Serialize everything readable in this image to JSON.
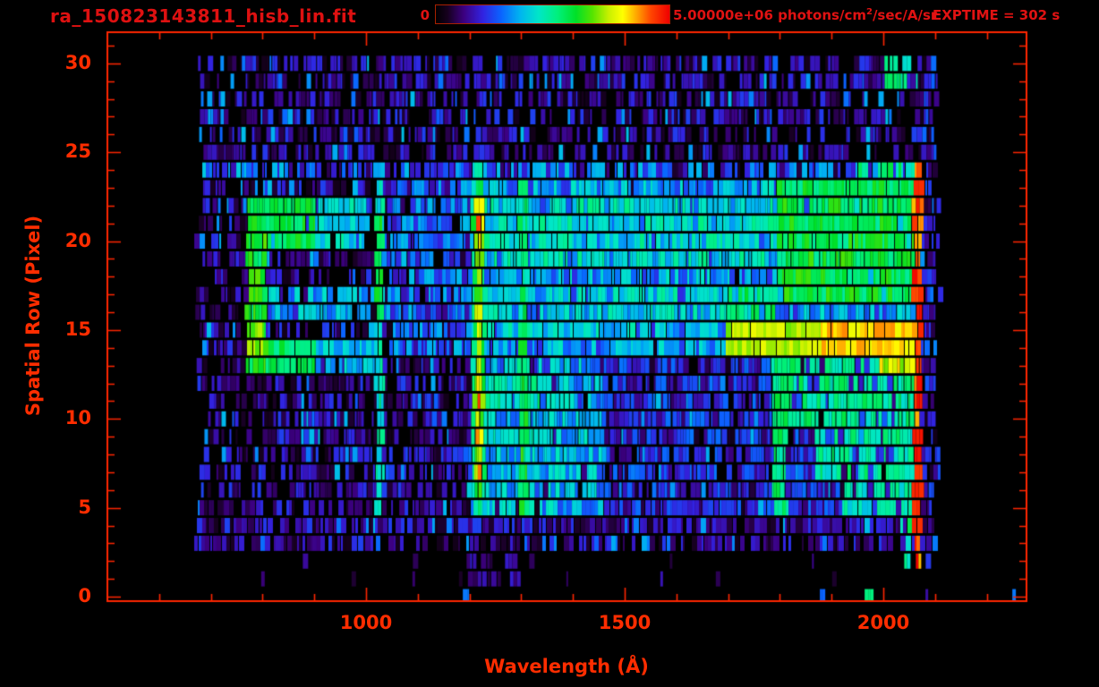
{
  "header": {
    "title": "ra_150823143811_hisb_lin.fit",
    "exptime": "EXPTIME = 302 s",
    "colorbar": {
      "min_label": "0",
      "max_label": "5.00000e+06",
      "units_prefix": " photons/cm",
      "units_sup": "2",
      "units_suffix": "/sec/A/sr",
      "stops": [
        [
          0.0,
          "#000000"
        ],
        [
          0.05,
          "#16001e"
        ],
        [
          0.12,
          "#3c0080"
        ],
        [
          0.2,
          "#3222e0"
        ],
        [
          0.28,
          "#0a64ff"
        ],
        [
          0.36,
          "#00b4f0"
        ],
        [
          0.44,
          "#00e6c8"
        ],
        [
          0.52,
          "#00f07d"
        ],
        [
          0.6,
          "#00e028"
        ],
        [
          0.67,
          "#55e400"
        ],
        [
          0.74,
          "#c8f000"
        ],
        [
          0.8,
          "#ffff00"
        ],
        [
          0.86,
          "#ffa500"
        ],
        [
          0.92,
          "#ff4600"
        ],
        [
          1.0,
          "#f00000"
        ]
      ]
    }
  },
  "axes": {
    "x": {
      "label": "Wavelength (Å)",
      "ticks": [
        1000,
        1500,
        2000
      ]
    },
    "y": {
      "label": "Spatial Row (Pixel)",
      "ticks": [
        0,
        5,
        10,
        15,
        20,
        25,
        30
      ]
    }
  },
  "colors": {
    "axis_red": "#ff2600",
    "label_red": "#ff2d00",
    "top_text_red": "#de1111",
    "background": "#000000"
  },
  "chart_data": {
    "type": "heatmap",
    "title": "ra_150823143811_hisb_lin.fit",
    "xlabel": "Wavelength (Å)",
    "ylabel": "Spatial Row (Pixel)",
    "x_ticks": [
      1000,
      1500,
      2000
    ],
    "y_ticks": [
      0,
      5,
      10,
      15,
      20,
      25,
      30
    ],
    "x_minor_step": 100,
    "y_minor_step": 1,
    "wl_axis_range": [
      500,
      2280
    ],
    "row_axis_range": [
      -0.25,
      31.75
    ],
    "data_wl_extent": [
      662,
      2105
    ],
    "colorbar_min": 0,
    "colorbar_max": "5.00000e+06 photons/cm2/sec/A/sr",
    "exposure": "302 s",
    "lya_line": {
      "wl": [
        1204,
        1233
      ],
      "center": 1218.5,
      "halfwidth": 14.5,
      "rows": [
        4.6,
        24.3
      ],
      "profile": [
        [
          4.6,
          0.5
        ],
        [
          5,
          0.55
        ],
        [
          6,
          0.64
        ],
        [
          7,
          0.85
        ],
        [
          8,
          0.74
        ],
        [
          9,
          0.86
        ],
        [
          10,
          0.77
        ],
        [
          11,
          0.9
        ],
        [
          12,
          0.78
        ],
        [
          13,
          0.7
        ],
        [
          14,
          0.68
        ],
        [
          15,
          0.75
        ],
        [
          16,
          0.8
        ],
        [
          17,
          0.73
        ],
        [
          18,
          0.68
        ],
        [
          19,
          0.75
        ],
        [
          20,
          0.82
        ],
        [
          21,
          0.93
        ],
        [
          22,
          0.9
        ],
        [
          23,
          0.62
        ],
        [
          24.3,
          0.5
        ]
      ]
    },
    "row0_specks": {
      "rows": [
        0,
        0.6
      ],
      "points": [
        [
          1192,
          0.3
        ],
        [
          1884,
          0.28
        ],
        [
          1972,
          0.52
        ],
        [
          2084,
          0.15
        ],
        [
          2251,
          0.3
        ]
      ]
    },
    "features": [
      {
        "id": "background-speckle",
        "rows": [
          2.6,
          30.6
        ],
        "wl": [
          662,
          2102
        ],
        "v": [
          0.04,
          0.24
        ],
        "density": 0.68
      },
      {
        "id": "background-bright-flecks",
        "rows": [
          2.6,
          30.6
        ],
        "wl": [
          662,
          2102
        ],
        "v": [
          0.26,
          0.38
        ],
        "density": 0.06
      },
      {
        "id": "row24-noise-band",
        "rows": [
          23.4,
          24.5
        ],
        "wl": [
          662,
          2066
        ],
        "v": [
          0.18,
          0.4
        ],
        "density": 0.55
      },
      {
        "id": "upper-emission-block",
        "rows": [
          13.6,
          23.4
        ],
        "wl": [
          1200,
          2066
        ],
        "v": [
          0.2,
          0.45
        ],
        "density": 0.97
      },
      {
        "id": "upper-pre-lya-speckle",
        "rows": [
          13.6,
          23.4
        ],
        "wl": [
          1045,
          1200
        ],
        "v": [
          0.14,
          0.38
        ],
        "density": 0.85
      },
      {
        "id": "bright-rows-19-22",
        "rows": [
          18.6,
          22.5
        ],
        "wl": [
          1228,
          1800
        ],
        "v": [
          0.3,
          0.52
        ],
        "density": 0.85
      },
      {
        "id": "bright-rows-15-17",
        "rows": [
          14.6,
          17.4
        ],
        "wl": [
          1228,
          1760
        ],
        "v": [
          0.28,
          0.5
        ],
        "density": 0.8
      },
      {
        "id": "green-right-block",
        "rows": [
          16.4,
          23.4
        ],
        "wl": [
          1795,
          2066
        ],
        "v": [
          0.48,
          0.66
        ],
        "density": 0.97
      },
      {
        "id": "green-right-mid",
        "rows": [
          15.9,
          17.4
        ],
        "wl": [
          1700,
          1795
        ],
        "v": [
          0.45,
          0.6
        ],
        "density": 0.9
      },
      {
        "id": "green-right-top",
        "rows": [
          23.4,
          24.5
        ],
        "wl": [
          1950,
          2066
        ],
        "v": [
          0.42,
          0.58
        ],
        "density": 0.75
      },
      {
        "id": "yellow-band-rows14-15",
        "rows": [
          13.6,
          15.4
        ],
        "wl": [
          1695,
          2066
        ],
        "v": [
          0.68,
          0.78
        ],
        "density": 1
      },
      {
        "id": "orange-band-rows14-15",
        "rows": [
          13.6,
          15.4
        ],
        "wl": [
          1880,
          2058
        ],
        "v": [
          0.78,
          0.88
        ],
        "density": 1
      },
      {
        "id": "mid-left-cyan-band",
        "rows": [
          15.4,
          17.6
        ],
        "wl": [
          798,
          1045
        ],
        "v": [
          0.26,
          0.44
        ],
        "density": 0.8
      },
      {
        "id": "c-feature-vertical",
        "rows": [
          12.6,
          20.7
        ],
        "wl": [
          769,
          807
        ],
        "v": [
          0.5,
          0.68
        ],
        "density": 1
      },
      {
        "id": "c-feature-vertical-hot",
        "rows": [
          13.4,
          15.9
        ],
        "wl": [
          773,
          803
        ],
        "v": [
          0.64,
          0.76
        ],
        "density": 1
      },
      {
        "id": "c-feature-top-arm",
        "rows": [
          19.8,
          22.5
        ],
        "wl": [
          769,
          900
        ],
        "v": [
          0.5,
          0.64
        ],
        "density": 0.95
      },
      {
        "id": "c-feature-top-arm-fade",
        "rows": [
          19.8,
          22.5
        ],
        "wl": [
          900,
          1005
        ],
        "v": [
          0.34,
          0.5
        ],
        "density": 0.85
      },
      {
        "id": "c-feature-bottom-arm",
        "rows": [
          12.6,
          14.5
        ],
        "wl": [
          769,
          905
        ],
        "v": [
          0.48,
          0.62
        ],
        "density": 0.95
      },
      {
        "id": "c-feature-bottom-arm-fade",
        "rows": [
          12.6,
          14.5
        ],
        "wl": [
          905,
          1020
        ],
        "v": [
          0.3,
          0.45
        ],
        "density": 0.8
      },
      {
        "id": "lyman-beta-line",
        "rows": [
          4.7,
          23.3
        ],
        "wl": [
          1019,
          1035
        ],
        "v": [
          0.38,
          0.54
        ],
        "density": 1
      },
      {
        "id": "lyman-beta-bright",
        "rows": [
          15.6,
          21.6
        ],
        "wl": [
          1020,
          1033
        ],
        "v": [
          0.5,
          0.64
        ],
        "density": 1
      },
      {
        "id": "oi-1304-line",
        "rows": [
          4.7,
          23.3
        ],
        "wl": [
          1296,
          1314
        ],
        "v": [
          0.42,
          0.58
        ],
        "density": 0.95
      },
      {
        "id": "oi-1304-lower-bright",
        "rows": [
          4.7,
          14.4
        ],
        "wl": [
          1298,
          1312
        ],
        "v": [
          0.5,
          0.66
        ],
        "density": 1
      },
      {
        "id": "oi-1356-line",
        "rows": [
          4.7,
          14.4
        ],
        "wl": [
          1348,
          1362
        ],
        "v": [
          0.34,
          0.48
        ],
        "density": 0.85
      },
      {
        "id": "arm-row11",
        "rows": [
          10.7,
          12.2
        ],
        "wl": [
          1232,
          1342
        ],
        "v": [
          0.4,
          0.55
        ],
        "density": 0.9
      },
      {
        "id": "arm-row9",
        "rows": [
          8.6,
          9.9
        ],
        "wl": [
          1232,
          1342
        ],
        "v": [
          0.36,
          0.5
        ],
        "density": 0.85
      },
      {
        "id": "lower-emission-block",
        "rows": [
          4.6,
          13.4
        ],
        "wl": [
          1200,
          2066
        ],
        "v": [
          0.1,
          0.3
        ],
        "density": 0.75
      },
      {
        "id": "lower-cyan-left",
        "rows": [
          4.6,
          13.4
        ],
        "wl": [
          1200,
          1465
        ],
        "v": [
          0.24,
          0.46
        ],
        "density": 0.9
      },
      {
        "id": "line-1800-vertical",
        "rows": [
          4.7,
          13.4
        ],
        "wl": [
          1786,
          1815
        ],
        "v": [
          0.45,
          0.6
        ],
        "density": 1
      },
      {
        "id": "lower-green-right-a",
        "rows": [
          9.7,
          13.4
        ],
        "wl": [
          1800,
          2066
        ],
        "v": [
          0.42,
          0.58
        ],
        "density": 0.85
      },
      {
        "id": "lower-green-right-b",
        "rows": [
          6.7,
          9.7
        ],
        "wl": [
          1868,
          2066
        ],
        "v": [
          0.4,
          0.56
        ],
        "density": 0.85
      },
      {
        "id": "lower-green-right-c",
        "rows": [
          4.6,
          6.7
        ],
        "wl": [
          1922,
          2066
        ],
        "v": [
          0.38,
          0.52
        ],
        "density": 0.8
      },
      {
        "id": "hot-tip-row13",
        "rows": [
          12.6,
          13.4
        ],
        "wl": [
          1995,
          2062
        ],
        "v": [
          0.68,
          0.84
        ],
        "density": 1
      },
      {
        "id": "red-edge-line-2070",
        "rows": [
          1.6,
          24.4
        ],
        "wl": [
          2058,
          2075
        ],
        "v": [
          0.84,
          1.0
        ],
        "density": 1
      },
      {
        "id": "green-edge-top-rows29-30",
        "rows": [
          28.5,
          30.6
        ],
        "wl": [
          2005,
          2066
        ],
        "v": [
          0.42,
          0.58
        ],
        "density": 0.6
      },
      {
        "id": "right-sparse-noise",
        "rows": [
          1.8,
          30.6
        ],
        "wl": [
          2075,
          2112
        ],
        "v": [
          0.08,
          0.3
        ],
        "density": 0.25
      },
      {
        "id": "bottom-row4-noise",
        "rows": [
          3.4,
          4.6
        ],
        "wl": [
          662,
          2060
        ],
        "v": [
          0.05,
          0.2
        ],
        "density": 0.55
      },
      {
        "id": "bottom-row3-noise",
        "rows": [
          2.6,
          3.4
        ],
        "wl": [
          662,
          910
        ],
        "v": [
          0.05,
          0.2
        ],
        "density": 0.55
      },
      {
        "id": "rows1-2-sparse",
        "rows": [
          0.8,
          2.6
        ],
        "wl": [
          662,
          2100
        ],
        "v": [
          0.05,
          0.18
        ],
        "density": 0.05
      },
      {
        "id": "lya-tail-specks",
        "rows": [
          0.8,
          3.4
        ],
        "wl": [
          1196,
          1296
        ],
        "v": [
          0.07,
          0.2
        ],
        "density": 0.45
      },
      {
        "id": "green-cluster-bottom-right",
        "rows": [
          1.8,
          4.4
        ],
        "wl": [
          2028,
          2060
        ],
        "v": [
          0.42,
          0.58
        ],
        "density": 0.5
      }
    ]
  }
}
